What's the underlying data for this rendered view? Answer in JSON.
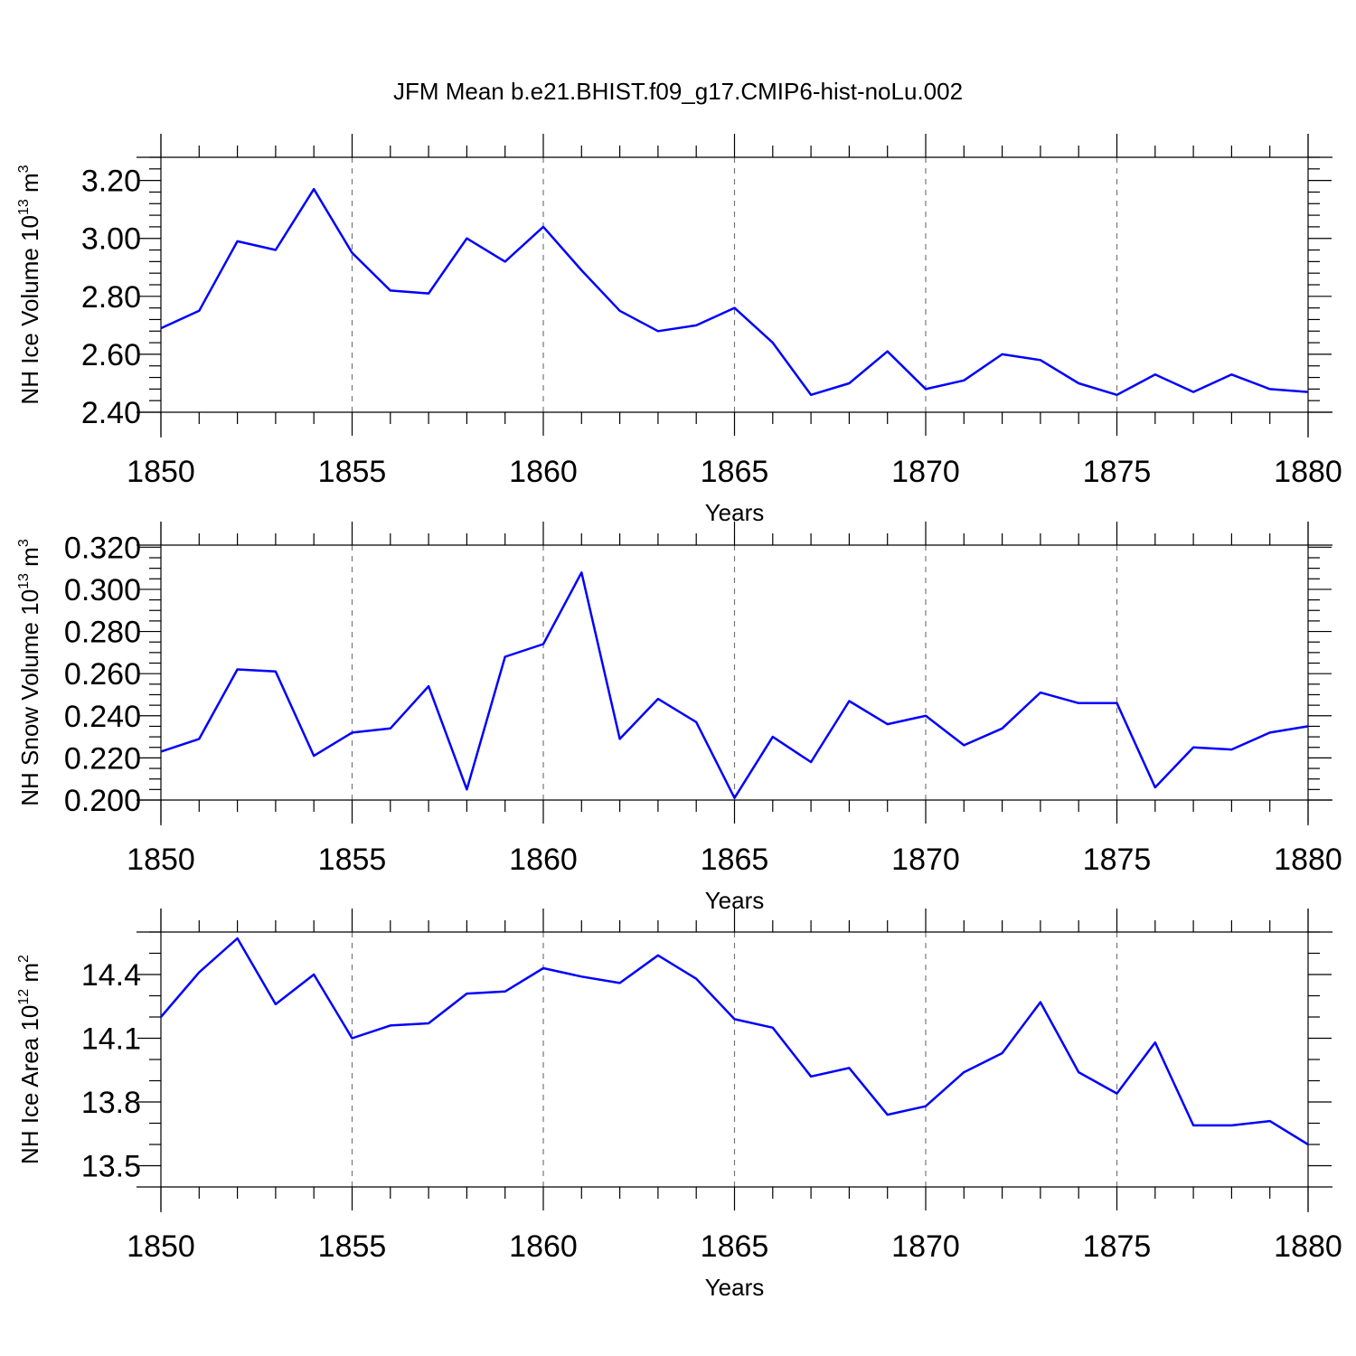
{
  "title": "JFM Mean b.e21.BHIST.f09_g17.CMIP6-hist-noLu.002",
  "colors": {
    "line": "#0000ff",
    "axes": "#000000",
    "grid": "#777777"
  },
  "chart_data": [
    {
      "type": "line",
      "name": "ice-volume",
      "title": "JFM Mean b.e21.BHIST.f09_g17.CMIP6-hist-noLu.002",
      "ylabel": "NH Ice Volume 10",
      "ylabel_sup": "13",
      "ylabel_unit": " m",
      "ylabel_unit_sup": "3",
      "xlabel": "Years",
      "xlim": [
        1850,
        1880
      ],
      "ylim": [
        2.4,
        3.28
      ],
      "xticks": [
        1850,
        1855,
        1860,
        1865,
        1870,
        1875,
        1880
      ],
      "yticks": [
        2.4,
        2.6,
        2.8,
        3.0,
        3.2
      ],
      "ytick_labels": [
        "2.40",
        "2.60",
        "2.80",
        "3.00",
        "3.20"
      ],
      "x": [
        1850,
        1851,
        1852,
        1853,
        1854,
        1855,
        1856,
        1857,
        1858,
        1859,
        1860,
        1861,
        1862,
        1863,
        1864,
        1865,
        1866,
        1867,
        1868,
        1869,
        1870,
        1871,
        1872,
        1873,
        1874,
        1875,
        1876,
        1877,
        1878,
        1879,
        1880
      ],
      "values": [
        2.69,
        2.75,
        2.99,
        2.96,
        3.17,
        2.95,
        2.82,
        2.81,
        3.0,
        2.92,
        3.04,
        2.89,
        2.75,
        2.68,
        2.7,
        2.76,
        2.64,
        2.46,
        2.5,
        2.61,
        2.48,
        2.51,
        2.6,
        2.58,
        2.5,
        2.46,
        2.53,
        2.47,
        2.53,
        2.48,
        2.47
      ]
    },
    {
      "type": "line",
      "name": "snow-volume",
      "ylabel": "NH Snow Volume 10",
      "ylabel_sup": "13",
      "ylabel_unit": " m",
      "ylabel_unit_sup": "3",
      "xlabel": "Years",
      "xlim": [
        1850,
        1880
      ],
      "ylim": [
        0.2,
        0.321
      ],
      "xticks": [
        1850,
        1855,
        1860,
        1865,
        1870,
        1875,
        1880
      ],
      "yticks": [
        0.2,
        0.22,
        0.24,
        0.26,
        0.28,
        0.3,
        0.32
      ],
      "ytick_labels": [
        "0.200",
        "0.220",
        "0.240",
        "0.260",
        "0.280",
        "0.300",
        "0.320"
      ],
      "x": [
        1850,
        1851,
        1852,
        1853,
        1854,
        1855,
        1856,
        1857,
        1858,
        1859,
        1860,
        1861,
        1862,
        1863,
        1864,
        1865,
        1866,
        1867,
        1868,
        1869,
        1870,
        1871,
        1872,
        1873,
        1874,
        1875,
        1876,
        1877,
        1878,
        1879,
        1880
      ],
      "values": [
        0.223,
        0.229,
        0.262,
        0.261,
        0.221,
        0.232,
        0.234,
        0.254,
        0.205,
        0.268,
        0.274,
        0.308,
        0.229,
        0.248,
        0.237,
        0.201,
        0.23,
        0.218,
        0.247,
        0.236,
        0.24,
        0.226,
        0.234,
        0.251,
        0.246,
        0.246,
        0.206,
        0.225,
        0.224,
        0.232,
        0.235
      ]
    },
    {
      "type": "line",
      "name": "ice-area",
      "ylabel": "NH Ice Area 10",
      "ylabel_sup": "12",
      "ylabel_unit": " m",
      "ylabel_unit_sup": "2",
      "xlabel": "Years",
      "xlim": [
        1850,
        1880
      ],
      "ylim": [
        13.4,
        14.6
      ],
      "xticks": [
        1850,
        1855,
        1860,
        1865,
        1870,
        1875,
        1880
      ],
      "yticks": [
        13.5,
        13.8,
        14.1,
        14.4
      ],
      "ytick_labels": [
        "13.5",
        "13.8",
        "14.1",
        "14.4"
      ],
      "x": [
        1850,
        1851,
        1852,
        1853,
        1854,
        1855,
        1856,
        1857,
        1858,
        1859,
        1860,
        1861,
        1862,
        1863,
        1864,
        1865,
        1866,
        1867,
        1868,
        1869,
        1870,
        1871,
        1872,
        1873,
        1874,
        1875,
        1876,
        1877,
        1878,
        1879,
        1880
      ],
      "values": [
        14.2,
        14.41,
        14.57,
        14.26,
        14.4,
        14.1,
        14.16,
        14.17,
        14.31,
        14.32,
        14.43,
        14.39,
        14.36,
        14.49,
        14.38,
        14.19,
        14.15,
        13.92,
        13.96,
        13.74,
        13.78,
        13.94,
        14.03,
        14.27,
        13.94,
        13.84,
        14.08,
        13.69,
        13.69,
        13.71,
        13.6
      ]
    }
  ]
}
